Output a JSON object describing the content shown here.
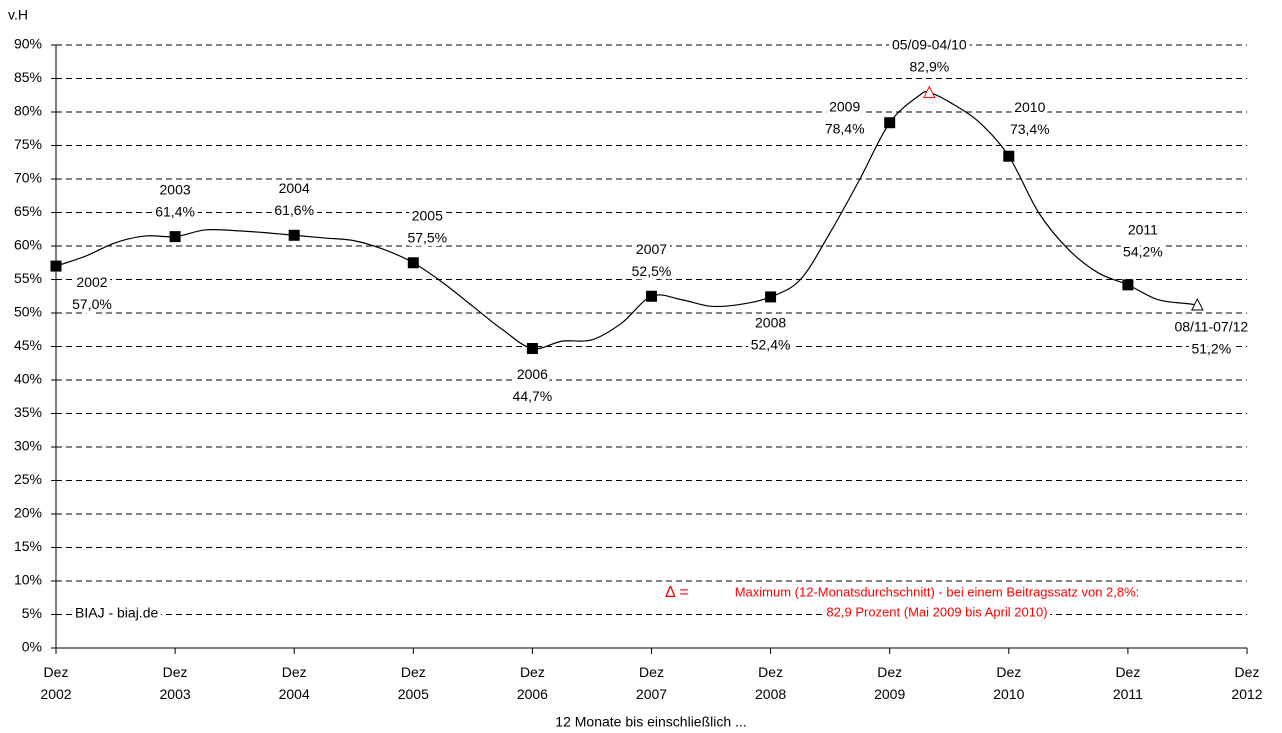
{
  "chart_data": {
    "type": "line",
    "ylabel": "v.H",
    "xlabel": "12 Monate bis einschließlich ...",
    "source": "BIAJ - biaj.de",
    "note": {
      "symbol": "Δ =",
      "lines": [
        "Maximum (12-Monatsdurchschnitt) - bei einem Beitragssatz von 2,8%:",
        "82,9 Prozent (Mai 2009 bis April 2010)"
      ],
      "color": "#ff0000"
    },
    "xlim": [
      2002,
      2012
    ],
    "xticks": [
      {
        "value": 2002,
        "label": "Dez 2002"
      },
      {
        "value": 2003,
        "label": "Dez 2003"
      },
      {
        "value": 2004,
        "label": "Dez 2004"
      },
      {
        "value": 2005,
        "label": "Dez 2005"
      },
      {
        "value": 2006,
        "label": "Dez 2006"
      },
      {
        "value": 2007,
        "label": "Dez 2007"
      },
      {
        "value": 2008,
        "label": "Dez 2008"
      },
      {
        "value": 2009,
        "label": "Dez 2009"
      },
      {
        "value": 2010,
        "label": "Dez 2010"
      },
      {
        "value": 2011,
        "label": "Dez 2011"
      },
      {
        "value": 2012,
        "label": "Dez 2012"
      }
    ],
    "ylim": [
      0,
      90
    ],
    "yticks": [
      {
        "value": 0,
        "label": "0%"
      },
      {
        "value": 5,
        "label": "5%"
      },
      {
        "value": 10,
        "label": "10%"
      },
      {
        "value": 15,
        "label": "15%"
      },
      {
        "value": 20,
        "label": "20%"
      },
      {
        "value": 25,
        "label": "25%"
      },
      {
        "value": 30,
        "label": "30%"
      },
      {
        "value": 35,
        "label": "35%"
      },
      {
        "value": 40,
        "label": "40%"
      },
      {
        "value": 45,
        "label": "45%"
      },
      {
        "value": 50,
        "label": "50%"
      },
      {
        "value": 55,
        "label": "55%"
      },
      {
        "value": 60,
        "label": "60%"
      },
      {
        "value": 65,
        "label": "65%"
      },
      {
        "value": 70,
        "label": "70%"
      },
      {
        "value": 75,
        "label": "75%"
      },
      {
        "value": 80,
        "label": "80%"
      },
      {
        "value": 85,
        "label": "85%"
      },
      {
        "value": 90,
        "label": "90%"
      }
    ],
    "grid": true,
    "series": [
      {
        "color": "#000000",
        "x": [
          2002,
          2002.25,
          2002.5,
          2002.75,
          2003,
          2003.25,
          2003.5,
          2003.75,
          2004,
          2004.25,
          2004.5,
          2004.75,
          2005,
          2005.25,
          2005.5,
          2005.75,
          2006,
          2006.25,
          2006.5,
          2006.75,
          2007,
          2007.25,
          2007.5,
          2007.75,
          2008,
          2008.25,
          2008.5,
          2008.75,
          2009,
          2009.25,
          2009.333,
          2009.5,
          2009.75,
          2010,
          2010.25,
          2010.5,
          2010.75,
          2011,
          2011.25,
          2011.5,
          2011.583
        ],
        "values": [
          57.0,
          58.5,
          60.5,
          61.5,
          61.4,
          62.4,
          62.3,
          62.0,
          61.6,
          61.2,
          60.8,
          59.5,
          57.5,
          54.5,
          51.0,
          47.5,
          44.7,
          45.8,
          46.0,
          48.5,
          52.5,
          52.0,
          51.0,
          51.3,
          52.4,
          55.0,
          62.0,
          70.0,
          78.4,
          82.5,
          82.9,
          81.5,
          78.5,
          73.4,
          65.0,
          59.5,
          56.0,
          54.2,
          52.0,
          51.4,
          51.2
        ],
        "markers": [
          "square",
          null,
          null,
          null,
          "square",
          null,
          null,
          null,
          "square",
          null,
          null,
          null,
          "square",
          null,
          null,
          null,
          "square",
          null,
          null,
          null,
          "square",
          null,
          null,
          null,
          "square",
          null,
          null,
          null,
          "square",
          null,
          "triangle",
          null,
          null,
          "square",
          null,
          null,
          null,
          "square",
          null,
          null,
          "triangle"
        ],
        "marker_colors": [
          null,
          null,
          null,
          null,
          null,
          null,
          null,
          null,
          null,
          null,
          null,
          null,
          null,
          null,
          null,
          null,
          null,
          null,
          null,
          null,
          null,
          null,
          null,
          null,
          null,
          null,
          null,
          null,
          null,
          null,
          "#ff0000",
          null,
          null,
          null,
          null,
          null,
          null,
          null,
          null,
          null,
          null
        ],
        "point_labels": [
          "2002",
          null,
          null,
          null,
          "2003",
          null,
          null,
          null,
          "2004",
          null,
          null,
          null,
          "2005",
          null,
          null,
          null,
          "2006",
          null,
          null,
          null,
          "2007",
          null,
          null,
          null,
          "2008",
          null,
          null,
          null,
          "2009",
          null,
          "05/09-04/10",
          null,
          null,
          "2010",
          null,
          null,
          null,
          "2011",
          null,
          null,
          "08/11-07/12"
        ],
        "value_labels": [
          "57,0%",
          null,
          null,
          null,
          "61,4%",
          null,
          null,
          null,
          "61,6%",
          null,
          null,
          null,
          "57,5%",
          null,
          null,
          null,
          "44,7%",
          null,
          null,
          null,
          "52,5%",
          null,
          null,
          null,
          "52,4%",
          null,
          null,
          null,
          "78,4%",
          null,
          "82,9%",
          null,
          null,
          "73,4%",
          null,
          null,
          null,
          "54,2%",
          null,
          null,
          "51,2%"
        ]
      }
    ]
  }
}
